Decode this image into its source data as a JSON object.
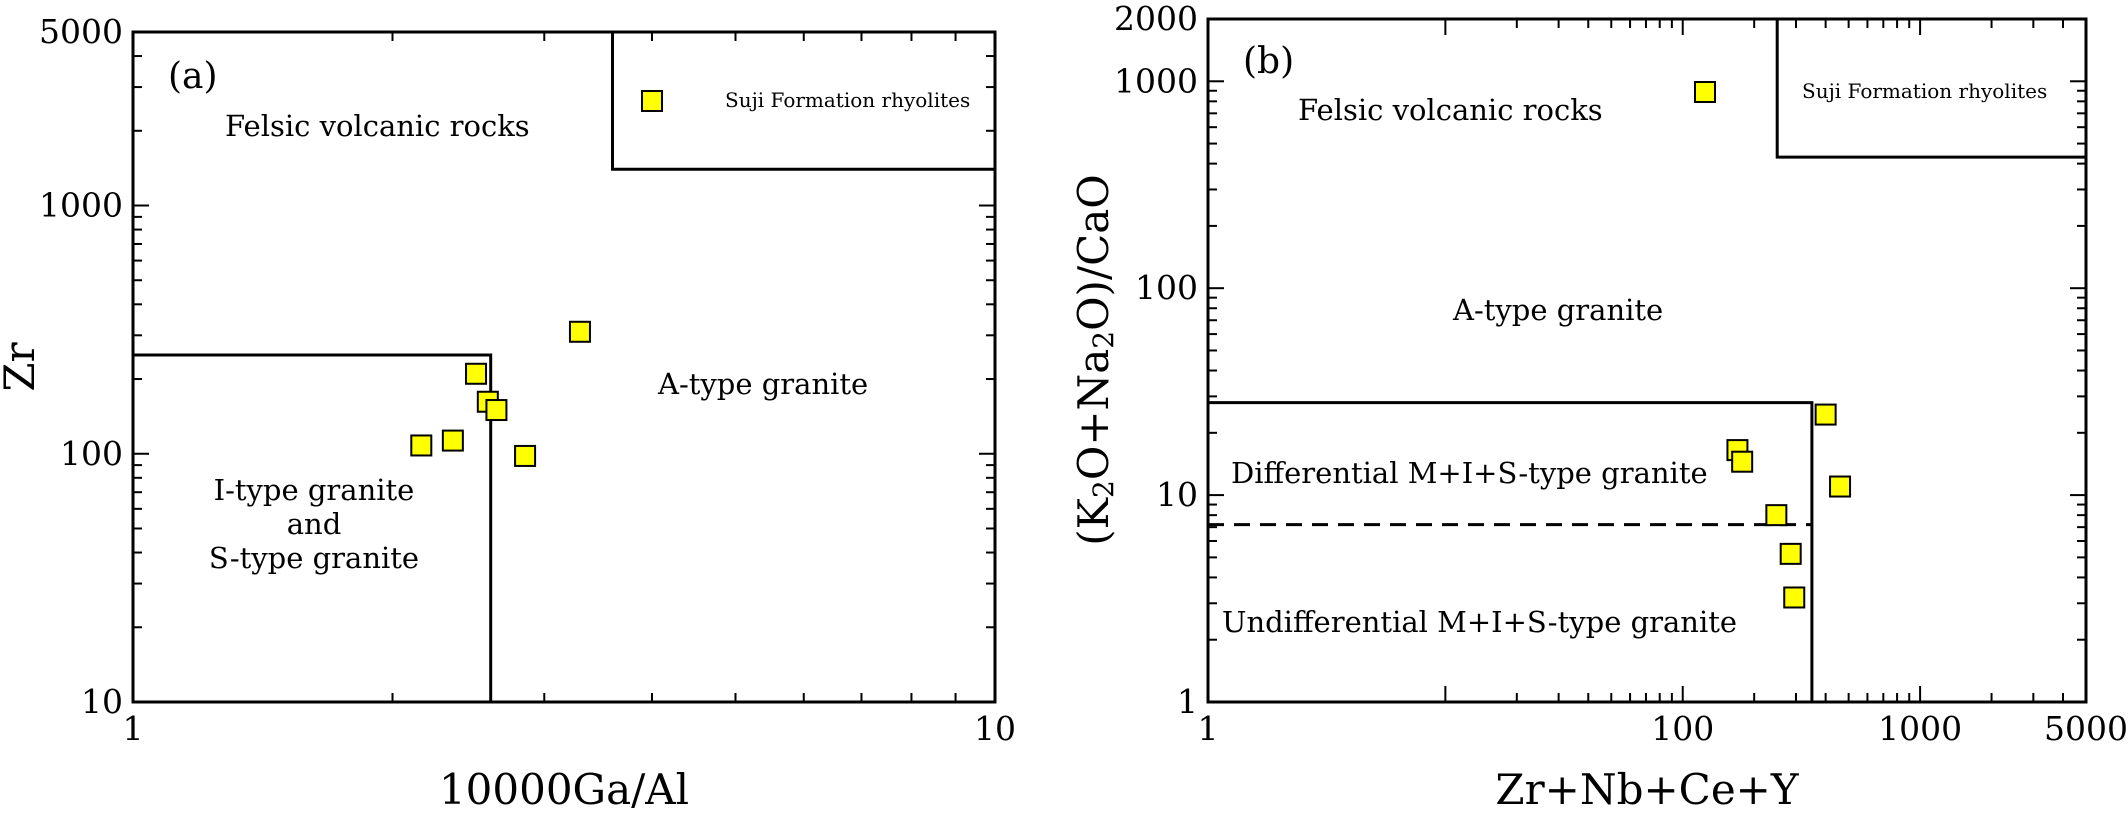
{
  "panels": [
    {
      "panel_label": "(a)",
      "xlabel": "10000Ga/Al",
      "ylabel": "Zr",
      "legend": "Suji Formation rhyolites",
      "regions": [
        "Felsic volcanic rocks",
        "A-type granite",
        "I-type granite",
        "and",
        "S-type granite"
      ],
      "x_tick_labels": [
        "1",
        "10"
      ],
      "y_tick_labels": [
        "10",
        "100",
        "1000",
        "5000"
      ]
    },
    {
      "panel_label": "(b)",
      "xlabel": "Zr+Nb+Ce+Y",
      "ylabel": "(K2O+Na2O)/CaO",
      "ylabel_parts": [
        "O+Na",
        "O)/CaO"
      ],
      "legend": "Suji Formation rhyolites",
      "regions": [
        "Felsic volcanic rocks",
        "A-type granite",
        "Differential M+I+S-type  granite",
        "Undifferential M+I+S-type  granite"
      ],
      "x_tick_labels": [
        "1",
        "100",
        "1000",
        "5000"
      ],
      "y_tick_labels": [
        "1",
        "10",
        "100",
        "1000",
        "2000"
      ]
    }
  ],
  "chart_data": [
    {
      "type": "scatter",
      "title": "",
      "panel_label": "(a)",
      "xlabel": "10000Ga/Al",
      "ylabel": "Zr",
      "x_scale": "log",
      "y_scale": "log",
      "xlim": [
        1,
        10
      ],
      "ylim": [
        10,
        5000
      ],
      "grid": false,
      "legend_position": "top-right",
      "marker": "square",
      "marker_color": "#ffff00",
      "series": [
        {
          "name": "Suji Formation rhyolites",
          "points": [
            {
              "x": 2.16,
              "y": 108
            },
            {
              "x": 2.35,
              "y": 113
            },
            {
              "x": 2.5,
              "y": 210
            },
            {
              "x": 2.58,
              "y": 162
            },
            {
              "x": 2.64,
              "y": 150
            },
            {
              "x": 2.85,
              "y": 98
            },
            {
              "x": 3.3,
              "y": 310
            }
          ]
        }
      ],
      "boundaries": [
        {
          "style": "solid",
          "points": [
            [
              1,
              250
            ],
            [
              2.6,
              250
            ],
            [
              2.6,
              10
            ]
          ]
        },
        {
          "style": "solid",
          "points": [
            [
              3.6,
              5000
            ],
            [
              3.6,
              1400
            ],
            [
              10,
              1400
            ]
          ]
        }
      ]
    },
    {
      "type": "scatter",
      "title": "",
      "panel_label": "(b)",
      "xlabel": "Zr+Nb+Ce+Y",
      "ylabel": "(K2O+Na2O)/CaO",
      "x_scale": "log",
      "y_scale": "log",
      "xlim": [
        1,
        5000
      ],
      "ylim": [
        1,
        2000
      ],
      "grid": false,
      "legend_position": "top-right",
      "marker": "square",
      "marker_color": "#ffff00",
      "series": [
        {
          "name": "Suji Formation rhyolites",
          "points": [
            {
              "x": 170,
              "y": 16.5
            },
            {
              "x": 178,
              "y": 14.5
            },
            {
              "x": 248,
              "y": 8.0
            },
            {
              "x": 285,
              "y": 5.2
            },
            {
              "x": 295,
              "y": 3.2
            },
            {
              "x": 400,
              "y": 24.5
            },
            {
              "x": 460,
              "y": 11.0
            }
          ]
        }
      ],
      "boundaries": [
        {
          "style": "solid",
          "points": [
            [
              1,
              28
            ],
            [
              350,
              28
            ],
            [
              350,
              1
            ]
          ]
        },
        {
          "style": "dashed",
          "points": [
            [
              1,
              7.2
            ],
            [
              350,
              7.2
            ]
          ]
        },
        {
          "style": "solid",
          "points": [
            [
              250,
              2000
            ],
            [
              250,
              430
            ],
            [
              5000,
              430
            ]
          ]
        }
      ]
    }
  ]
}
